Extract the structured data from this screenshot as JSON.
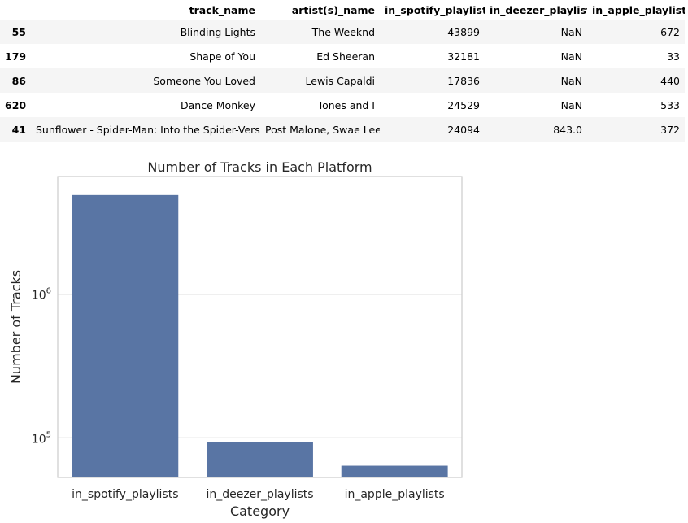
{
  "table": {
    "columns": [
      "",
      "track_name",
      "artist(s)_name",
      "in_spotify_playlists",
      "in_deezer_playlists",
      "in_apple_playlists"
    ],
    "rows": [
      {
        "index": "55",
        "track_name": "Blinding Lights",
        "artist": "The Weeknd",
        "spotify": "43899",
        "deezer": "NaN",
        "apple": "672"
      },
      {
        "index": "179",
        "track_name": "Shape of You",
        "artist": "Ed Sheeran",
        "spotify": "32181",
        "deezer": "NaN",
        "apple": "33"
      },
      {
        "index": "86",
        "track_name": "Someone You Loved",
        "artist": "Lewis Capaldi",
        "spotify": "17836",
        "deezer": "NaN",
        "apple": "440"
      },
      {
        "index": "620",
        "track_name": "Dance Monkey",
        "artist": "Tones and I",
        "spotify": "24529",
        "deezer": "NaN",
        "apple": "533"
      },
      {
        "index": "41",
        "track_name": "Sunflower - Spider-Man: Into the Spider-Verse",
        "artist": "Post Malone, Swae Lee",
        "spotify": "24094",
        "deezer": "843.0",
        "apple": "372"
      }
    ]
  },
  "chart_data": {
    "type": "bar",
    "title": "Number of Tracks in Each Platform",
    "xlabel": "Category",
    "ylabel": "Number of Tracks",
    "categories": [
      "in_spotify_playlists",
      "in_deezer_playlists",
      "in_apple_playlists"
    ],
    "values": [
      4900000,
      94000,
      64000
    ],
    "yscale": "log",
    "ylim": [
      53000,
      6600000
    ],
    "yticks": [
      {
        "value": 100000,
        "base": "10",
        "exp": "5"
      },
      {
        "value": 1000000,
        "base": "10",
        "exp": "6"
      }
    ],
    "bar_color": "#5975a4",
    "grid": "horizontal"
  }
}
